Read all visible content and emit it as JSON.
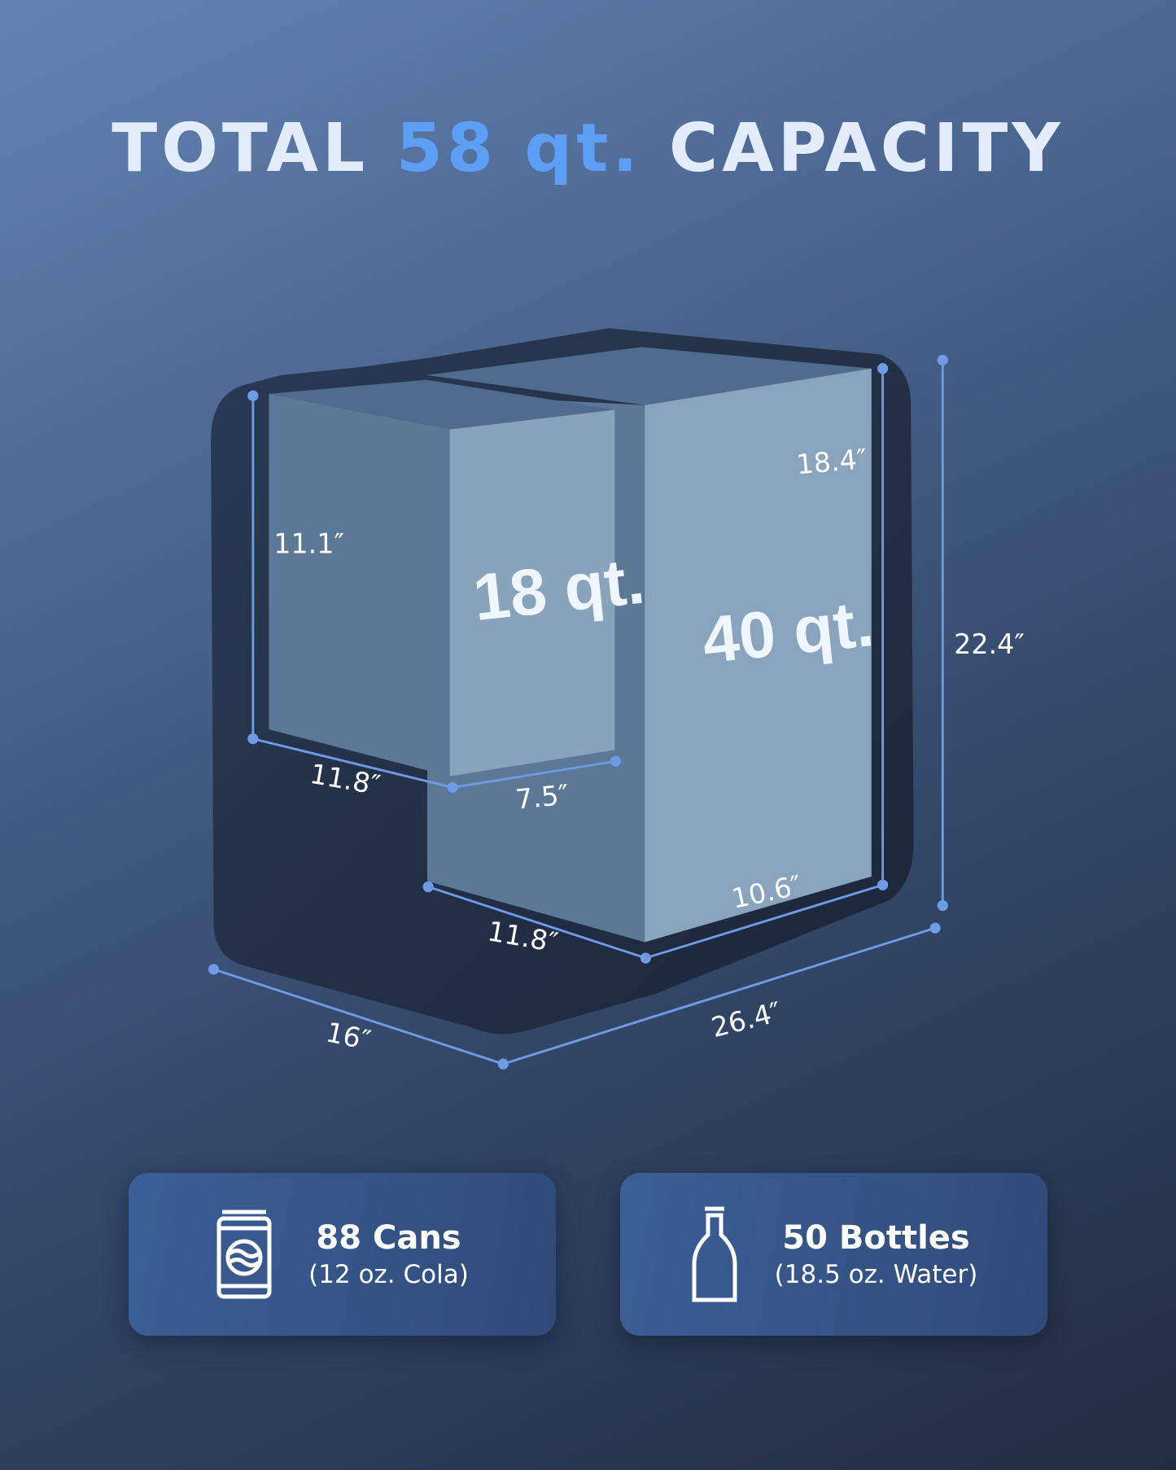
{
  "title": {
    "prefix": "TOTAL",
    "highlight": "58 qt.",
    "suffix": "CAPACITY"
  },
  "compartments": [
    {
      "label": "18 qt."
    },
    {
      "label": "40 qt."
    }
  ],
  "dimensions": {
    "left_height": "11.1″",
    "left_depth": "11.8″",
    "left_width": "7.5″",
    "right_height": "18.4″",
    "right_width": "10.6″",
    "right_depth": "11.8″",
    "overall_height": "22.4″",
    "overall_depth": "16″",
    "overall_width": "26.4″"
  },
  "cards": [
    {
      "icon": "soda-can-icon",
      "title": "88 Cans",
      "subtitle": "(12 oz. Cola)"
    },
    {
      "icon": "bottle-icon",
      "title": "50 Bottles",
      "subtitle": "(18.5 oz. Water)"
    }
  ],
  "colors": {
    "accent": "#5d9ff5",
    "dimension_line": "#6f9be6",
    "box_front": "#8aa3bc",
    "box_side": "#5b7896"
  }
}
